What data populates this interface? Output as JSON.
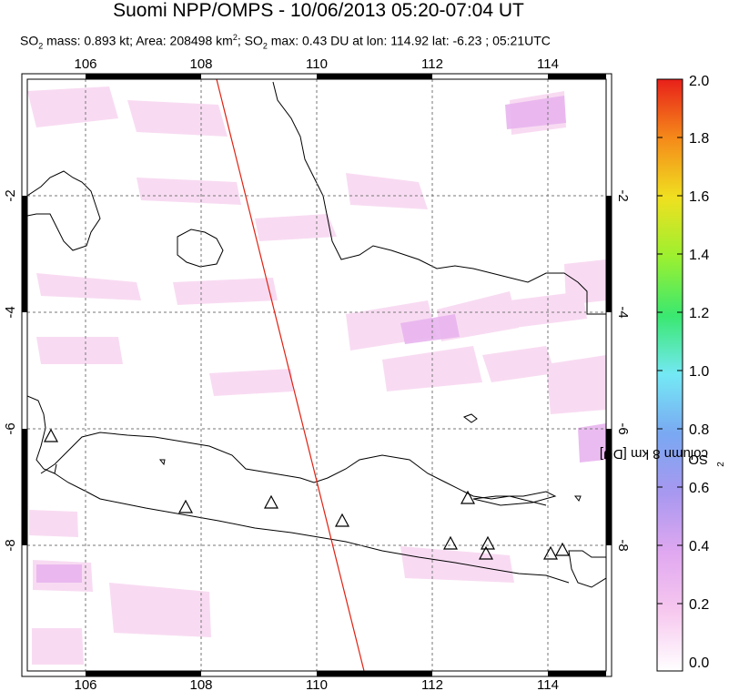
{
  "header": {
    "title": "Suomi NPP/OMPS - 10/06/2013 05:20-07:04 UT",
    "subtitle_parts": {
      "so2_mass_prefix": "SO",
      "so2_mass_text": " mass: 0.893 kt; Area: 208498 km",
      "area_sup": "2",
      "so2_max_prefix": "; SO",
      "so2_max_text": " max: 0.43 DU at lon: 114.92 lat: -6.23 ; 05:21UTC",
      "sub2": "2"
    }
  },
  "map": {
    "lon_ticks": [
      "106",
      "108",
      "110",
      "112",
      "114"
    ],
    "lat_ticks_left": [
      "-2",
      "-4",
      "-6",
      "-8"
    ],
    "lat_ticks_right": [
      "-2",
      "-4",
      "-6",
      "-8"
    ],
    "lon_range": [
      105,
      115
    ],
    "lat_range": [
      -10,
      0
    ],
    "volcano_count": 10
  },
  "colorbar": {
    "ticks": [
      "0.0",
      "0.2",
      "0.4",
      "0.6",
      "0.8",
      "1.0",
      "1.2",
      "1.4",
      "1.6",
      "1.8",
      "2.0"
    ],
    "label_prefix": "SO",
    "label_sub": "2",
    "label_suffix": " column 8 km [DU]",
    "range": [
      0.0,
      2.0
    ],
    "colors": [
      "#ffffff",
      "#f7c8ef",
      "#d5a0f0",
      "#8a92f0",
      "#74e8f5",
      "#3ae870",
      "#c8f02a",
      "#f2c21c",
      "#f5701a",
      "#e8201a"
    ]
  }
}
